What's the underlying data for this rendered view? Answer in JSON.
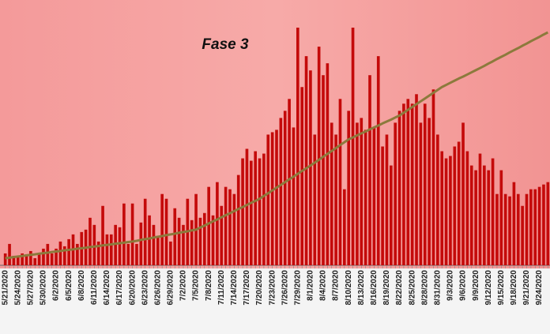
{
  "chart_data": {
    "type": "bar",
    "annotation": "Fase 3",
    "categories": [
      "5/21/2020",
      null,
      null,
      "5/24/2020",
      null,
      null,
      "5/27/2020",
      null,
      null,
      "5/30/2020",
      null,
      null,
      "6/2/2020",
      null,
      null,
      "6/5/2020",
      null,
      null,
      "6/8/2020",
      null,
      null,
      "6/11/2020",
      null,
      null,
      "6/14/2020",
      null,
      null,
      "6/17/2020",
      null,
      null,
      "6/20/2020",
      null,
      null,
      "6/23/2020",
      null,
      null,
      "6/26/2020",
      null,
      null,
      "6/29/2020",
      null,
      null,
      "7/2/2020",
      null,
      null,
      "7/5/2020",
      null,
      null,
      "7/8/2020",
      null,
      null,
      "7/11/2020",
      null,
      null,
      "7/14/2020",
      null,
      null,
      "7/17/2020",
      null,
      null,
      "7/20/2020",
      null,
      null,
      "7/23/2020",
      null,
      null,
      "7/26/2020",
      null,
      null,
      "7/29/2020",
      null,
      null,
      "8/1/2020",
      null,
      null,
      "8/4/2020",
      null,
      null,
      "8/7/2020",
      null,
      null,
      "8/10/2020",
      null,
      null,
      "8/13/2020",
      null,
      null,
      "8/16/2020",
      null,
      null,
      "8/19/2020",
      null,
      null,
      "8/22/2020",
      null,
      null,
      "8/25/2020",
      null,
      null,
      "8/28/2020",
      null,
      null,
      "8/31/2020",
      null,
      null,
      "9/3/2020",
      null,
      null,
      "9/6/2020",
      null,
      null,
      "9/9/2020",
      null,
      null,
      "9/12/2020",
      null,
      null,
      "9/15/2020",
      null,
      null,
      "9/18/2020",
      null,
      null,
      "9/21/2020",
      null,
      null,
      "9/24/2020",
      null,
      null
    ],
    "series": [
      {
        "type": "bar",
        "color": "#c40a0a",
        "values": [
          5,
          9,
          4,
          4,
          5,
          4,
          6,
          3,
          5,
          7,
          9,
          5,
          7,
          10,
          8,
          11,
          13,
          9,
          14,
          15,
          20,
          17,
          10,
          25,
          13,
          13,
          17,
          16,
          26,
          9,
          26,
          9,
          18,
          28,
          21,
          17,
          12,
          30,
          28,
          10,
          24,
          20,
          17,
          28,
          19,
          30,
          20,
          22,
          33,
          21,
          35,
          25,
          33,
          32,
          30,
          38,
          45,
          49,
          44,
          48,
          45,
          47,
          55,
          56,
          57,
          62,
          65,
          70,
          58,
          100,
          75,
          88,
          82,
          55,
          92,
          80,
          85,
          60,
          55,
          70,
          32,
          65,
          100,
          60,
          62,
          57,
          80,
          58,
          88,
          50,
          55,
          42,
          60,
          65,
          68,
          70,
          68,
          72,
          60,
          68,
          62,
          74,
          55,
          48,
          45,
          46,
          50,
          52,
          60,
          48,
          42,
          40,
          47,
          42,
          40,
          45,
          30,
          40,
          30,
          29,
          35,
          30,
          25,
          30,
          32,
          32,
          33,
          34,
          35
        ]
      },
      {
        "type": "line",
        "color": "#8c7a3c",
        "values": [
          3,
          3.2,
          3.5,
          3.7,
          3.9,
          4.2,
          4.4,
          4.6,
          4.9,
          5.1,
          5.3,
          5.6,
          5.8,
          6,
          6.3,
          6.5,
          6.7,
          7,
          7.2,
          7.4,
          7.7,
          7.9,
          8.1,
          8.4,
          8.6,
          8.8,
          9.1,
          9.3,
          9.5,
          9.8,
          10,
          10.3,
          10.7,
          11,
          11.3,
          11.7,
          12,
          12.3,
          12.7,
          13,
          13.3,
          13.7,
          14,
          14.3,
          14.7,
          15,
          15.9,
          16.7,
          17.6,
          18.5,
          19.3,
          20.2,
          21.1,
          21.9,
          22.8,
          23.7,
          24.5,
          25.4,
          26.3,
          27.1,
          28,
          29.2,
          30.3,
          31.5,
          32.7,
          33.8,
          35,
          36.2,
          37.3,
          38.5,
          39.7,
          40.8,
          42,
          43.2,
          44.4,
          45.7,
          46.9,
          48.1,
          49.3,
          50.6,
          51.8,
          53,
          53.8,
          54.7,
          55.5,
          56.3,
          57.2,
          58,
          58.8,
          59.7,
          60.5,
          61.3,
          62.2,
          63,
          64.2,
          65.4,
          66.6,
          67.8,
          69,
          70.2,
          71.4,
          72.6,
          73.8,
          75,
          75.9,
          76.8,
          77.7,
          78.6,
          79.4,
          80.3,
          81.2,
          82.1,
          83,
          83.9,
          84.9,
          85.8,
          86.8,
          87.7,
          88.6,
          89.6,
          90.5,
          91.4,
          92.4,
          93.3,
          94.3,
          95.2,
          96.1,
          97.1,
          98
        ]
      }
    ],
    "ylim": [
      0,
      100
    ]
  }
}
